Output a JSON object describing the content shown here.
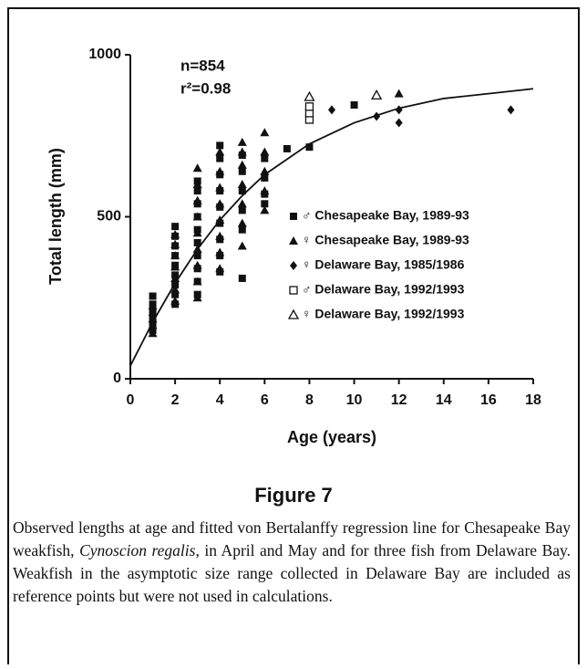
{
  "chart_data": {
    "type": "scatter",
    "annotations": [
      "n=854",
      "r²=0.98"
    ],
    "x_label": "Age (years)",
    "y_label": "Total length (mm)",
    "xlim": [
      0,
      18
    ],
    "xticks": [
      0,
      2,
      4,
      6,
      8,
      10,
      12,
      14,
      16,
      18
    ],
    "ylim": [
      0,
      1000
    ],
    "yticks": [
      0,
      500,
      1000
    ],
    "color": "#111",
    "series": [
      {
        "name": "♂ Chesapeake Bay, 1989-93",
        "marker": "square",
        "x": [
          1,
          1,
          1,
          1,
          1,
          1,
          2,
          2,
          2,
          2,
          2,
          2,
          2,
          2,
          2,
          3,
          3,
          3,
          3,
          3,
          3,
          3,
          3,
          3,
          3,
          4,
          4,
          4,
          4,
          4,
          4,
          4,
          4,
          4,
          5,
          5,
          5,
          5,
          5,
          5,
          6,
          6,
          6,
          6,
          7,
          8,
          10
        ],
        "values": [
          150,
          170,
          190,
          210,
          230,
          255,
          230,
          260,
          290,
          320,
          350,
          380,
          410,
          440,
          470,
          260,
          300,
          340,
          380,
          420,
          460,
          500,
          540,
          580,
          610,
          330,
          380,
          430,
          480,
          530,
          580,
          630,
          680,
          720,
          310,
          460,
          520,
          580,
          640,
          690,
          540,
          570,
          620,
          680,
          710,
          715,
          845
        ]
      },
      {
        "name": "♀ Chesapeake Bay, 1989-93",
        "marker": "triangle",
        "x": [
          1,
          1,
          1,
          1,
          1,
          2,
          2,
          2,
          2,
          2,
          2,
          2,
          3,
          3,
          3,
          3,
          3,
          3,
          3,
          3,
          3,
          4,
          4,
          4,
          4,
          4,
          4,
          4,
          4,
          5,
          5,
          5,
          5,
          5,
          5,
          5,
          6,
          6,
          6,
          6,
          6,
          12
        ],
        "values": [
          140,
          165,
          185,
          205,
          225,
          240,
          275,
          310,
          345,
          380,
          415,
          445,
          250,
          300,
          350,
          400,
          450,
          500,
          550,
          600,
          650,
          340,
          390,
          440,
          490,
          540,
          590,
          640,
          700,
          410,
          480,
          540,
          600,
          660,
          700,
          730,
          520,
          580,
          640,
          700,
          760,
          880
        ]
      },
      {
        "name": "♀ Delaware Bay, 1985/1986",
        "marker": "diamond",
        "x": [
          9,
          11,
          12,
          12,
          17
        ],
        "values": [
          830,
          810,
          830,
          790,
          830
        ]
      },
      {
        "name": "♂ Delaware Bay, 1992/1993",
        "marker": "square-open",
        "x": [
          8,
          8,
          8
        ],
        "values": [
          800,
          820,
          840
        ]
      },
      {
        "name": "♀ Delaware Bay, 1992/1993",
        "marker": "triangle-open",
        "x": [
          8,
          11
        ],
        "values": [
          870,
          875
        ]
      }
    ],
    "fit": {
      "x": [
        0,
        1,
        2,
        3,
        4,
        5,
        6,
        8,
        10,
        12,
        14,
        16,
        18
      ],
      "values": [
        40,
        175,
        295,
        400,
        490,
        565,
        630,
        725,
        790,
        835,
        865,
        880,
        895
      ]
    }
  },
  "figure": {
    "label": "Figure 7",
    "caption": [
      "Observed lengths at age and fitted von Bertalanffy regression line for Chesapeake Bay weakfish, ",
      "Cynoscion regalis",
      ", in April and May and for three fish from Delaware Bay. Weakfish in the asymptotic size range collected in Delaware Bay are included as reference points but were not used in calculations."
    ]
  }
}
